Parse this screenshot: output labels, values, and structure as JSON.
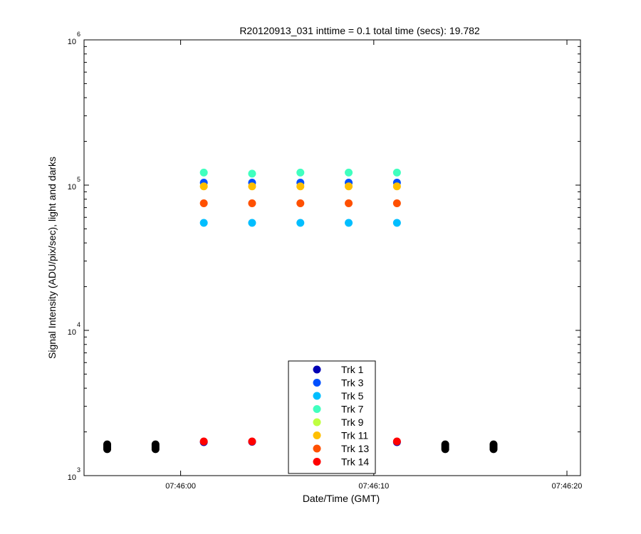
{
  "chart_data": {
    "type": "scatter",
    "title": "R20120913_031 inttime = 0.1 total time (secs): 19.782",
    "xlabel": "Date/Time (GMT)",
    "ylabel": "Signal Intensity (ADU/pix/sec), light and darks",
    "xscale": "time",
    "yscale": "log",
    "xlim": [
      "07:45:55",
      "07:46:20.7"
    ],
    "ylim": [
      1000,
      1000000
    ],
    "x_ticks": [
      "07:46:00",
      "07:46:10",
      "07:46:20"
    ],
    "y_ticks": [
      {
        "base": "10",
        "exp": "3",
        "value": 1000
      },
      {
        "base": "10",
        "exp": "4",
        "value": 10000
      },
      {
        "base": "10",
        "exp": "5",
        "value": 100000
      },
      {
        "base": "10",
        "exp": "6",
        "value": 1000000
      }
    ],
    "grid": false,
    "legend_position": "bottom-center",
    "dark_color": "#000000",
    "series": [
      {
        "name": "Trk 1",
        "color": "#0000b4",
        "x": [
          "07:46:01.2",
          "07:46:03.7",
          "07:46:11.2"
        ],
        "y": [
          1700,
          1710,
          1700
        ]
      },
      {
        "name": "Trk 3",
        "color": "#0050ff",
        "x": [
          "07:46:01.2",
          "07:46:03.7",
          "07:46:06.2",
          "07:46:08.7",
          "07:46:11.2"
        ],
        "y": [
          104000,
          104000,
          104000,
          104000,
          104000
        ]
      },
      {
        "name": "Trk 5",
        "color": "#00beff",
        "x": [
          "07:46:01.2",
          "07:46:03.7",
          "07:46:06.2",
          "07:46:08.7",
          "07:46:11.2"
        ],
        "y": [
          55000,
          55000,
          55000,
          55000,
          55000
        ]
      },
      {
        "name": "Trk 7",
        "color": "#40ffbf",
        "x": [
          "07:46:01.2",
          "07:46:03.7",
          "07:46:06.2",
          "07:46:08.7",
          "07:46:11.2"
        ],
        "y": [
          122000,
          120000,
          122000,
          122000,
          122000
        ]
      },
      {
        "name": "Trk 9",
        "color": "#bfff40",
        "x": [],
        "y": []
      },
      {
        "name": "Trk 11",
        "color": "#ffbf00",
        "x": [
          "07:46:01.2",
          "07:46:03.7",
          "07:46:06.2",
          "07:46:08.7",
          "07:46:11.2"
        ],
        "y": [
          98000,
          98000,
          98000,
          98000,
          98000
        ]
      },
      {
        "name": "Trk 13",
        "color": "#ff5000",
        "x": [
          "07:46:01.2",
          "07:46:03.7",
          "07:46:06.2",
          "07:46:08.7",
          "07:46:11.2"
        ],
        "y": [
          75000,
          75000,
          75000,
          75000,
          75000
        ]
      },
      {
        "name": "Trk 14",
        "color": "#ff0000",
        "x": [
          "07:46:01.2",
          "07:46:03.7",
          "07:46:11.2"
        ],
        "y": [
          1720,
          1720,
          1720
        ]
      }
    ],
    "darks": {
      "x": [
        "07:45:56.2",
        "07:45:58.7",
        "07:46:13.7",
        "07:46:16.2"
      ],
      "y": [
        1520,
        1560,
        1600,
        1640
      ]
    }
  }
}
